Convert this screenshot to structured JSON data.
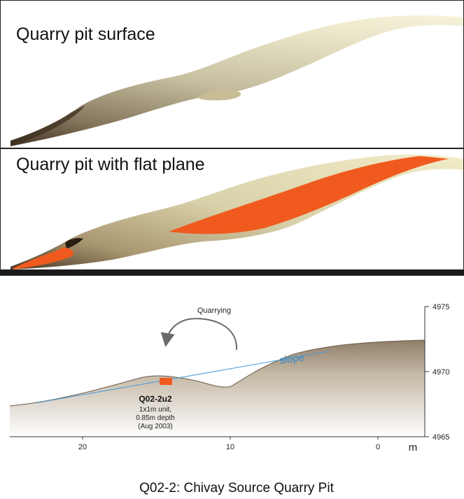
{
  "panels": {
    "surface": {
      "title": "Quarry pit surface"
    },
    "plane": {
      "title": "Quarry pit with flat plane"
    }
  },
  "profile": {
    "quarrying_label": "Quarrying",
    "slope_label": "slope",
    "unit_id": "Q02-2u2",
    "unit_desc_1": "1x1m unit,",
    "unit_desc_2": "0.85m depth",
    "unit_desc_3": "(Aug 2003)",
    "x_unit": "m",
    "x_ticks": [
      "20",
      "10",
      "0"
    ],
    "y_ticks": [
      "4975",
      "4970",
      "4965"
    ],
    "caption": "Q02-2: Chivay Source Quarry Pit"
  },
  "colors": {
    "surface_light": "#e8e2ba",
    "surface_dark": "#5a4630",
    "plane_orange": "#f05a1e",
    "slope_line": "#4a9ad8",
    "profile_fill": "#b3a593"
  }
}
